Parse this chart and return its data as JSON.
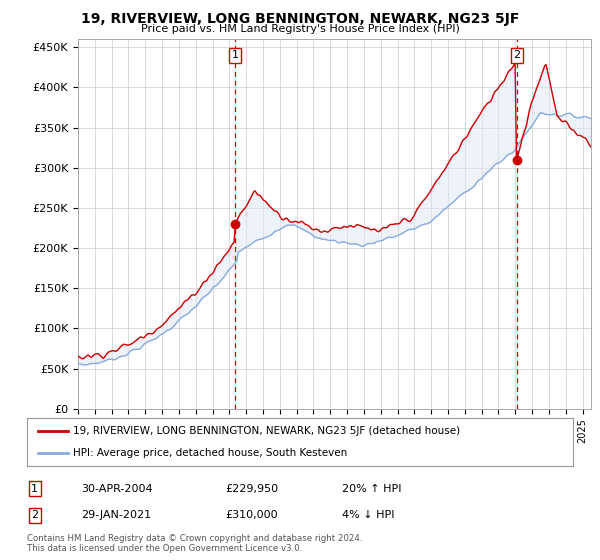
{
  "title": "19, RIVERVIEW, LONG BENNINGTON, NEWARK, NG23 5JF",
  "subtitle": "Price paid vs. HM Land Registry's House Price Index (HPI)",
  "ylabel_ticks": [
    "£0",
    "£50K",
    "£100K",
    "£150K",
    "£200K",
    "£250K",
    "£300K",
    "£350K",
    "£400K",
    "£450K"
  ],
  "ytick_values": [
    0,
    50000,
    100000,
    150000,
    200000,
    250000,
    300000,
    350000,
    400000,
    450000
  ],
  "ylim": [
    0,
    460000
  ],
  "xlim_start": 1995.0,
  "xlim_end": 2025.5,
  "sale1_x": 2004.33,
  "sale1_y": 229950,
  "sale2_x": 2021.08,
  "sale2_y": 310000,
  "sale1_label": "1",
  "sale2_label": "2",
  "sale1_date": "30-APR-2004",
  "sale1_price": "£229,950",
  "sale1_hpi": "20% ↑ HPI",
  "sale2_date": "29-JAN-2021",
  "sale2_price": "£310,000",
  "sale2_hpi": "4% ↓ HPI",
  "line_color_price": "#cc0000",
  "line_color_hpi": "#88aadd",
  "fill_color_hpi": "#dde8f5",
  "legend_label_price": "19, RIVERVIEW, LONG BENNINGTON, NEWARK, NG23 5JF (detached house)",
  "legend_label_hpi": "HPI: Average price, detached house, South Kesteven",
  "footer": "Contains HM Land Registry data © Crown copyright and database right 2024.\nThis data is licensed under the Open Government Licence v3.0.",
  "background_color": "#ffffff",
  "plot_bg_color": "#ffffff",
  "grid_color": "#cccccc"
}
